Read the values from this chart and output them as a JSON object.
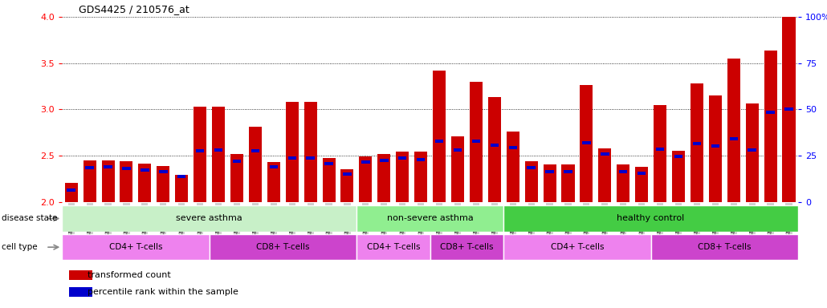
{
  "title": "GDS4425 / 210576_at",
  "samples": [
    "GSM788311",
    "GSM788312",
    "GSM788313",
    "GSM788314",
    "GSM788315",
    "GSM788316",
    "GSM788317",
    "GSM788318",
    "GSM788323",
    "GSM788324",
    "GSM788325",
    "GSM788326",
    "GSM788327",
    "GSM788328",
    "GSM788329",
    "GSM788330",
    "GSM788299",
    "GSM788300",
    "GSM788301",
    "GSM788302",
    "GSM788319",
    "GSM788320",
    "GSM788321",
    "GSM788322",
    "GSM788303",
    "GSM788304",
    "GSM788305",
    "GSM788306",
    "GSM788307",
    "GSM788308",
    "GSM788309",
    "GSM788310",
    "GSM788331",
    "GSM788332",
    "GSM788333",
    "GSM788334",
    "GSM788335",
    "GSM788336",
    "GSM788337",
    "GSM788338"
  ],
  "bar_values": [
    2.2,
    2.45,
    2.45,
    2.44,
    2.41,
    2.39,
    2.29,
    3.03,
    3.03,
    2.52,
    2.81,
    2.43,
    3.08,
    3.08,
    2.47,
    2.35,
    2.49,
    2.52,
    2.54,
    2.54,
    3.42,
    2.71,
    3.3,
    3.13,
    2.76,
    2.44,
    2.4,
    2.4,
    3.26,
    2.58,
    2.4,
    2.38,
    3.05,
    2.55,
    3.28,
    3.15,
    3.55,
    3.06,
    3.64,
    4.0
  ],
  "percentile_values": [
    2.13,
    2.37,
    2.38,
    2.36,
    2.34,
    2.33,
    2.27,
    2.55,
    2.56,
    2.44,
    2.55,
    2.38,
    2.47,
    2.47,
    2.41,
    2.3,
    2.43,
    2.45,
    2.47,
    2.46,
    2.66,
    2.56,
    2.66,
    2.61,
    2.59,
    2.37,
    2.33,
    2.33,
    2.64,
    2.52,
    2.33,
    2.31,
    2.57,
    2.49,
    2.63,
    2.6,
    2.68,
    2.56,
    2.97,
    3.0
  ],
  "bar_color": "#CC0000",
  "percentile_color": "#0000CC",
  "ylim_left": [
    2.0,
    4.0
  ],
  "ylim_right": [
    0,
    100
  ],
  "yticks_left": [
    2.0,
    2.5,
    3.0,
    3.5,
    4.0
  ],
  "yticks_right": [
    0,
    25,
    50,
    75,
    100
  ],
  "disease_groups": [
    {
      "label": "severe asthma",
      "start": 0,
      "end": 16,
      "color": "#c8f0c8"
    },
    {
      "label": "non-severe asthma",
      "start": 16,
      "end": 24,
      "color": "#90ee90"
    },
    {
      "label": "healthy control",
      "start": 24,
      "end": 40,
      "color": "#44cc44"
    }
  ],
  "cell_groups": [
    {
      "label": "CD4+ T-cells",
      "start": 0,
      "end": 8,
      "color": "#ee82ee"
    },
    {
      "label": "CD8+ T-cells",
      "start": 8,
      "end": 16,
      "color": "#cc44cc"
    },
    {
      "label": "CD4+ T-cells",
      "start": 16,
      "end": 20,
      "color": "#ee82ee"
    },
    {
      "label": "CD8+ T-cells",
      "start": 20,
      "end": 24,
      "color": "#cc44cc"
    },
    {
      "label": "CD4+ T-cells",
      "start": 24,
      "end": 32,
      "color": "#ee82ee"
    },
    {
      "label": "CD8+ T-cells",
      "start": 32,
      "end": 40,
      "color": "#cc44cc"
    }
  ],
  "legend_transformed": "transformed count",
  "legend_percentile": "percentile rank within the sample",
  "tick_bg_color": "#d0d0d0"
}
